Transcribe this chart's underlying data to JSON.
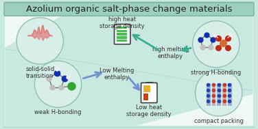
{
  "title": "Azolium organic salt-phase change materials",
  "title_bg": "#9dcfbf",
  "title_border": "#7ab0a0",
  "bg_main": "#c8e8e0",
  "bg_lower": "#f0f8f5",
  "diagonal_color": "#c0e0d8",
  "border_color": "#7ab0a0",
  "circle_fill": "#d8eee8",
  "circle_edge": "#90c0b4",
  "labels": {
    "solid_solid": "solid-solid\ntransition",
    "weak_hbond": "weak H-bonding",
    "high_heat": "high heat\nstorage density",
    "high_melt": "high melting\nenthalpy",
    "strong_hbond": "strong H-bonding",
    "low_melt": "Low Melting\nenthalpy",
    "low_heat": "Low heat\nstorage density",
    "compact": "compact packing"
  },
  "arrow_teal_color": "#38b090",
  "arrow_blue_color": "#7090d0",
  "salmon_color": "#e07878",
  "atom_gray": "#c0c0c0",
  "atom_white": "#f0f0f0",
  "atom_blue": "#1030b0",
  "atom_green": "#30a830",
  "atom_orange": "#d07030",
  "atom_red": "#c02818",
  "atom_darkblue": "#102080",
  "battery_green": "#48c050",
  "battery_orange": "#e8b030",
  "battery_red": "#d04010",
  "battery_outline": "#404040",
  "font_title": 9.5,
  "font_label": 6.0,
  "font_label_sm": 5.5
}
